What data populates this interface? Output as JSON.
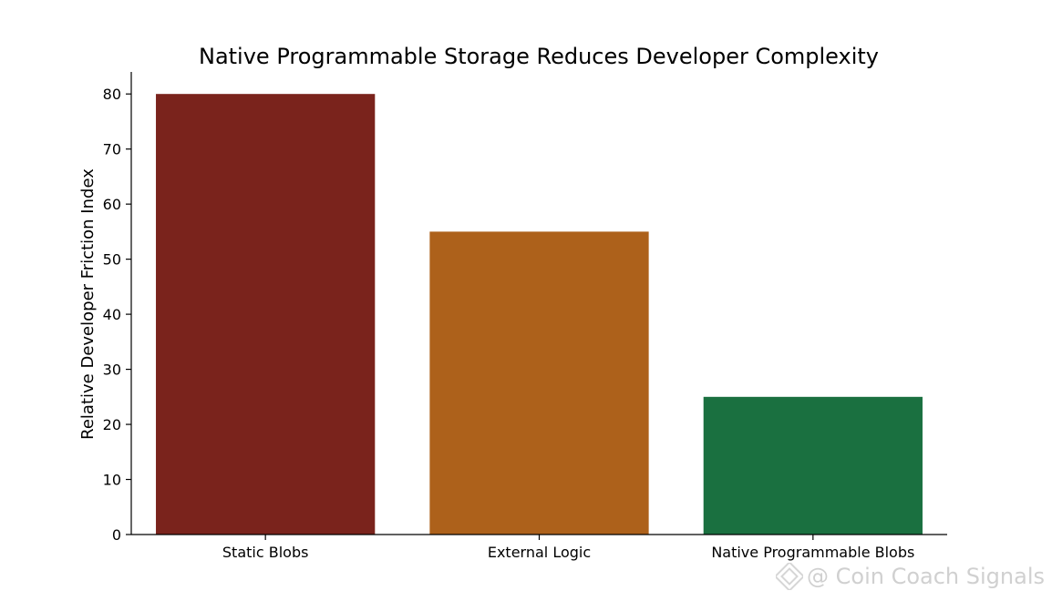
{
  "chart_data": {
    "type": "bar",
    "title": "Native Programmable Storage Reduces Developer Complexity",
    "xlabel": "",
    "ylabel": "Relative Developer Friction Index",
    "categories": [
      "Static Blobs",
      "External Logic",
      "Native Programmable Blobs"
    ],
    "values": [
      80,
      55,
      25
    ],
    "colors": [
      "#7a231c",
      "#ad611b",
      "#1a7040"
    ],
    "ylim": [
      0,
      84
    ],
    "yticks": [
      0,
      10,
      20,
      30,
      40,
      50,
      60,
      70,
      80
    ],
    "grid": false,
    "legend": "none"
  },
  "watermark": {
    "text": "@ Coin Coach Signals",
    "logo_icon": "binance-diamond-logo"
  }
}
